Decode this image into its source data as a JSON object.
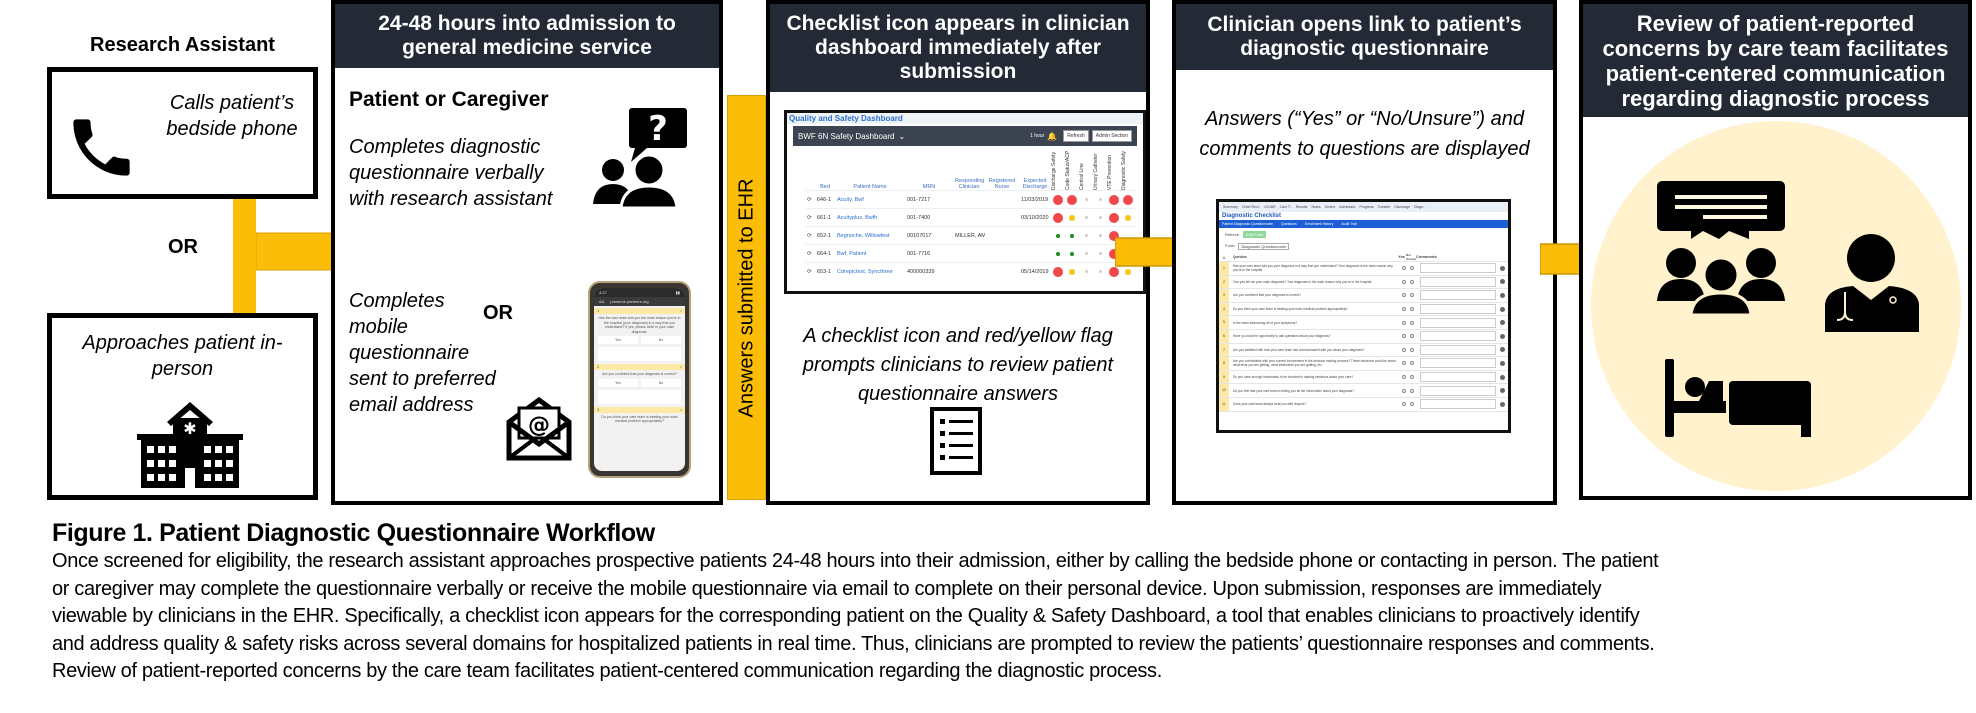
{
  "left": {
    "title": "Research Assistant",
    "box1": "Calls patient’s bedside phone",
    "or": "OR",
    "box2": "Approaches patient in-person"
  },
  "panel2": {
    "header": "24-48 hours into admission to general medicine service",
    "role": "Patient or Caregiver",
    "option1": "Completes diagnostic questionnaire verbally with research assistant",
    "or": "OR",
    "option2": "Completes mobile questionnaire sent to preferred email address",
    "phone": {
      "time": "4:27",
      "aa": "AA",
      "url": "preserve.partners.org",
      "questions": [
        {
          "n": "1",
          "text": "Has the care team told you the main reason you're in the hospital (your diagnosis) in a way that you understand? If yes, please write in your main diagnosis."
        },
        {
          "n": "2",
          "text": "Are you confident that your diagnosis is correct?"
        },
        {
          "n": "3",
          "text": "Do you think your care team is treating your main medical problem appropriately?"
        }
      ],
      "yes": "Yes",
      "no": "No"
    }
  },
  "ehr_bar": "Answers submitted to EHR",
  "panel3": {
    "header": "Checklist icon appears in clinician dashboard immediately after submission",
    "caption": "A checklist icon and red/yellow flag prompts clinicians to review patient questionnaire answers",
    "dashboard": {
      "title": "Quality and Safety Dashboard",
      "unit": "BWF 6N Safety Dashboard",
      "time": "1 hour",
      "refresh": "Refresh",
      "admin": "Admin Section",
      "columns": [
        "Bed",
        "Patient Name",
        "MRN",
        "Responding Clinician",
        "Registered Nurse",
        "Expected Discharge"
      ],
      "flag_columns": [
        "Discharge Safety",
        "Code Status/ACP",
        "Central Line",
        "Urinary Catheter",
        "VTE Prevention",
        "Diagnostic Safety"
      ],
      "rows": [
        {
          "bed": "646-1",
          "name": "Acuity, Bwf",
          "mrn": "001-7217",
          "clin": "",
          "nurse": "",
          "dc": "11/03/2019",
          "flags": [
            "red",
            "red",
            "gray",
            "gray",
            "red",
            "red"
          ]
        },
        {
          "bed": "661-1",
          "name": "Acuityplus, Bwfh",
          "mrn": "001-7400",
          "clin": "",
          "nurse": "",
          "dc": "03/10/2020",
          "flags": [
            "red",
            "yellow",
            "gray",
            "gray",
            "red",
            "yellow"
          ]
        },
        {
          "bed": "652-1",
          "name": "Begnoche, Willowtest",
          "mrn": "00107017",
          "clin": "MILLER, AM..",
          "nurse": "",
          "dc": "",
          "flags": [
            "green",
            "green",
            "gray",
            "gray",
            "red",
            "none"
          ]
        },
        {
          "bed": "664-1",
          "name": "Bwf, Patient",
          "mrn": "001-7716",
          "clin": "",
          "nurse": "",
          "dc": "",
          "flags": [
            "green",
            "green",
            "gray",
            "gray",
            "red",
            "green"
          ]
        },
        {
          "bed": "653-1",
          "name": "Cdrepictest, Syncthree",
          "mrn": "400000339",
          "clin": "",
          "nurse": "",
          "dc": "05/14/2019",
          "flags": [
            "red",
            "yellow",
            "gray",
            "gray",
            "red",
            "yellow"
          ]
        }
      ]
    }
  },
  "panel4": {
    "header": "Clinician opens link to patient’s diagnostic questionnaire",
    "caption": "Answers (“Yes” or “No/Unsure”) and comments to questions are displayed",
    "checklist": {
      "tabs": [
        "Summary",
        "Chart Revi..",
        "iGOAR",
        "Care T..",
        "Results",
        "Notes",
        "Orders",
        "Admission",
        "Progress",
        "Transfer",
        "Discharge",
        "Diagn.."
      ],
      "title": "Diagnostic Checklist",
      "subtabs": [
        "Patient Diagnostic Questionnaire",
        "Questions",
        "Enrollment History",
        "Audit Trail"
      ],
      "refresh": "Refresh",
      "edit": "Edit Form",
      "form_label": "Form:",
      "form": "Diagnostic Questionnaire",
      "col_num": "#",
      "col_q": "Question",
      "col_yes": "Yes",
      "col_no": "No/ Unsure",
      "col_comments": "Comments",
      "questions": [
        "Has your care team told you your diagnosis in a way that you understand? Your diagnosis is the main reason why you're in the hospital",
        "Can you tell me your main diagnosis? Your diagnosis is the main reason why you're in the hospital",
        "Are you confident that your diagnosis is correct?",
        "Do you think your care team is treating your main medical problem appropriately?",
        "Is the team addressing all of your symptoms?",
        "Have you had the opportunity to ask questions about your diagnosis?",
        "Are you satisfied with how your care team has communicated with you about your diagnosis?",
        "Are you comfortable with your current involvement in the decision making process? These decisions could be about what tests you are getting, what treatments you are getting, etc.",
        "Do you have enough information to be involved in making decisions about your care?",
        "Do you feel that your care team is telling you all the information about your diagnosis?",
        "Does your care team always treat you with respect?"
      ]
    }
  },
  "panel5": {
    "header": "Review of patient-reported concerns by care team facilitates patient-centered communication regarding diagnostic process"
  },
  "caption": {
    "title": "Figure 1. Patient Diagnostic Questionnaire Workflow",
    "lines": [
      "Once screened for eligibility,  the research assistant approaches prospective patients 24-48 hours into their admission, either by calling the bedside phone or contacting in person. The patient",
      "or caregiver may complete the questionnaire verbally or receive the mobile questionnaire via email to complete on their personal device. Upon submission, responses are immediately",
      "viewable  by clinicians in the EHR. Specifically, a checklist icon appears for the corresponding patient on the Quality & Safety Dashboard, a tool that enables clinicians to proactively identify",
      "and address quality  & safety risks across several domains for hospitalized patients in real time. Thus, clinicians are prompted to review the patients’ questionnaire responses and comments.",
      "Review of patient-reported concerns by the care team facilitates patient-centered communication regarding the diagnostic process."
    ]
  },
  "colors": {
    "header_bg": "#232a36",
    "arrow": "#fbbd08",
    "circle": "#fff2cc",
    "red": "#f04848",
    "yellow": "#f5c518",
    "green": "#1a8a1a",
    "gray": "#cccccc"
  }
}
